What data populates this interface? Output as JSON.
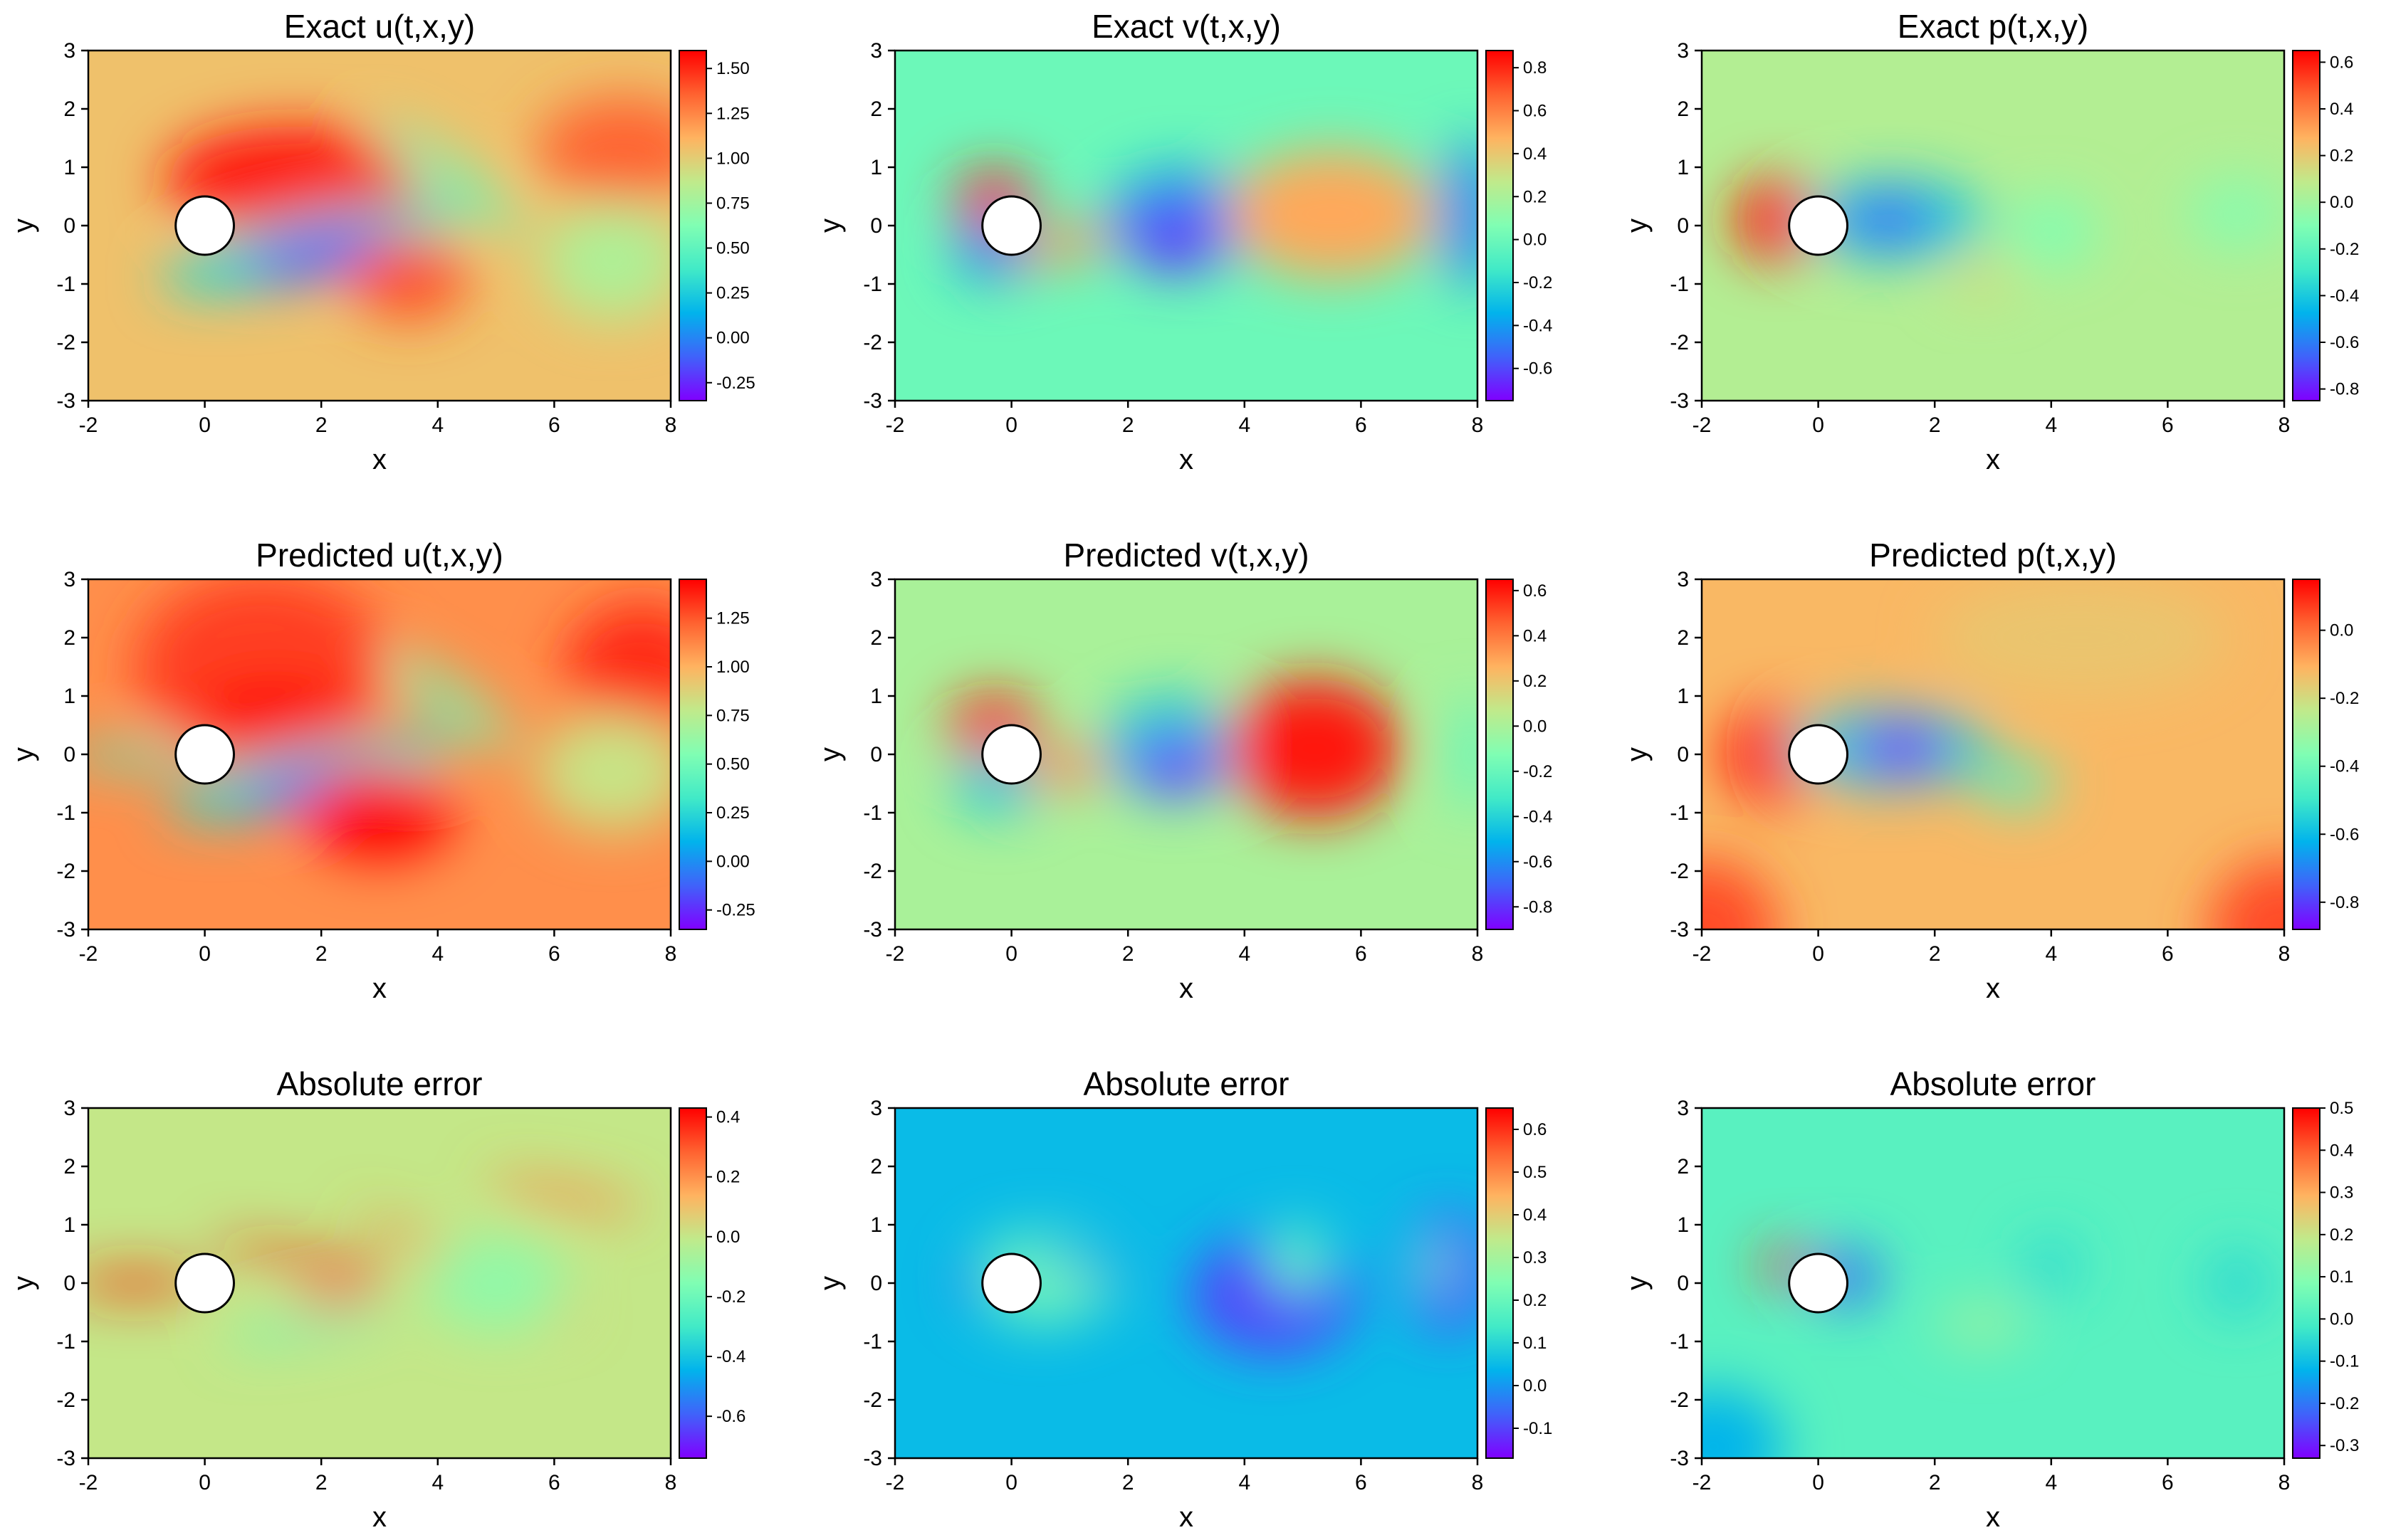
{
  "figure": {
    "colormap_name": "rainbow",
    "colormap": [
      "#8000ff",
      "#4062fa",
      "#01b3ec",
      "#41eac7",
      "#80feb3",
      "#c0ea8b",
      "#ffb360",
      "#ff6230",
      "#ff0000"
    ],
    "obstacle": {
      "center": [
        0,
        0
      ],
      "radius": 0.5,
      "fill": "#ffffff",
      "stroke": "#000000"
    }
  },
  "chart_data": [
    {
      "type": "heatmap",
      "id": "exact-u",
      "title": "Exact u(t,x,y)",
      "xlabel": "x",
      "ylabel": "y",
      "xlim": [
        -2,
        8
      ],
      "ylim": [
        -3,
        3
      ],
      "xticks": [
        "-2",
        "0",
        "2",
        "4",
        "6",
        "8"
      ],
      "yticks": [
        "-3",
        "-2",
        "-1",
        "0",
        "1",
        "2",
        "3"
      ],
      "vmin": -0.35,
      "vmax": 1.6,
      "background": 1.05,
      "colorbar_ticks": [
        {
          "value": 1.5,
          "label": "1.50"
        },
        {
          "value": 1.25,
          "label": "1.25"
        },
        {
          "value": 1.0,
          "label": "1.00"
        },
        {
          "value": 0.75,
          "label": "0.75"
        },
        {
          "value": 0.5,
          "label": "0.50"
        },
        {
          "value": 0.25,
          "label": "0.25"
        },
        {
          "value": 0.0,
          "label": "0.00"
        },
        {
          "value": -0.25,
          "label": "-0.25"
        }
      ],
      "features": [
        {
          "x": 1.5,
          "y": 0.8,
          "rx": 2.2,
          "ry": 0.9,
          "rot": 0,
          "v": 1.55
        },
        {
          "x": 1.8,
          "y": -0.4,
          "rx": 2.6,
          "ry": 0.55,
          "rot": 12,
          "v": 0.3
        },
        {
          "x": 2.0,
          "y": -0.5,
          "rx": 1.4,
          "ry": 0.35,
          "rot": 12,
          "v": -0.25
        },
        {
          "x": 4.2,
          "y": 0.8,
          "rx": 1.6,
          "ry": 0.3,
          "rot": -35,
          "v": 0.55
        },
        {
          "x": 3.5,
          "y": -0.9,
          "rx": 1.0,
          "ry": 0.7,
          "rot": 0,
          "v": 1.4
        },
        {
          "x": 7.2,
          "y": 1.3,
          "rx": 1.5,
          "ry": 0.9,
          "rot": 0,
          "v": 1.35
        },
        {
          "x": 7.0,
          "y": -0.6,
          "rx": 1.2,
          "ry": 1.0,
          "rot": 0,
          "v": 0.8
        }
      ]
    },
    {
      "type": "heatmap",
      "id": "exact-v",
      "title": "Exact v(t,x,y)",
      "xlabel": "x",
      "ylabel": "y",
      "xlim": [
        -2,
        8
      ],
      "ylim": [
        -3,
        3
      ],
      "xticks": [
        "-2",
        "0",
        "2",
        "4",
        "6",
        "8"
      ],
      "yticks": [
        "-3",
        "-2",
        "-1",
        "0",
        "1",
        "2",
        "3"
      ],
      "vmin": -0.75,
      "vmax": 0.88,
      "background": 0.0,
      "colorbar_ticks": [
        {
          "value": 0.8,
          "label": "0.8"
        },
        {
          "value": 0.6,
          "label": "0.6"
        },
        {
          "value": 0.4,
          "label": "0.4"
        },
        {
          "value": 0.2,
          "label": "0.2"
        },
        {
          "value": 0.0,
          "label": "0.0"
        },
        {
          "value": -0.2,
          "label": "-0.2"
        },
        {
          "value": -0.4,
          "label": "-0.4"
        },
        {
          "value": -0.6,
          "label": "-0.6"
        }
      ],
      "features": [
        {
          "x": -0.3,
          "y": 0.4,
          "rx": 0.7,
          "ry": 0.55,
          "rot": 0,
          "v": 0.8
        },
        {
          "x": -0.3,
          "y": -0.4,
          "rx": 0.7,
          "ry": 0.55,
          "rot": 0,
          "v": -0.45
        },
        {
          "x": 1.0,
          "y": -0.3,
          "rx": 1.0,
          "ry": 0.3,
          "rot": 15,
          "v": 0.55
        },
        {
          "x": 2.9,
          "y": 0.1,
          "rx": 1.3,
          "ry": 0.9,
          "rot": 0,
          "v": -0.4
        },
        {
          "x": 2.8,
          "y": -0.2,
          "rx": 0.8,
          "ry": 0.6,
          "rot": 0,
          "v": -0.65
        },
        {
          "x": 5.5,
          "y": 0.2,
          "rx": 1.8,
          "ry": 1.1,
          "rot": 0,
          "v": 0.5
        },
        {
          "x": 7.9,
          "y": 0.2,
          "rx": 0.5,
          "ry": 1.3,
          "rot": 0,
          "v": -0.45
        }
      ]
    },
    {
      "type": "heatmap",
      "id": "exact-p",
      "title": "Exact p(t,x,y)",
      "xlabel": "x",
      "ylabel": "y",
      "xlim": [
        -2,
        8
      ],
      "ylim": [
        -3,
        3
      ],
      "xticks": [
        "-2",
        "0",
        "2",
        "4",
        "6",
        "8"
      ],
      "yticks": [
        "-3",
        "-2",
        "-1",
        "0",
        "1",
        "2",
        "3"
      ],
      "vmin": -0.85,
      "vmax": 0.65,
      "background": 0.05,
      "colorbar_ticks": [
        {
          "value": 0.6,
          "label": "0.6"
        },
        {
          "value": 0.4,
          "label": "0.4"
        },
        {
          "value": 0.2,
          "label": "0.2"
        },
        {
          "value": 0.0,
          "label": "0.0"
        },
        {
          "value": -0.2,
          "label": "-0.2"
        },
        {
          "value": -0.4,
          "label": "-0.4"
        },
        {
          "value": -0.6,
          "label": "-0.6"
        },
        {
          "value": -0.8,
          "label": "-0.8"
        }
      ],
      "features": [
        {
          "x": -0.7,
          "y": 0.1,
          "rx": 0.75,
          "ry": 0.7,
          "rot": 0,
          "v": 0.6
        },
        {
          "x": 1.3,
          "y": 0.1,
          "rx": 1.6,
          "ry": 0.7,
          "rot": 0,
          "v": -0.4
        },
        {
          "x": 1.2,
          "y": 0.1,
          "rx": 0.8,
          "ry": 0.45,
          "rot": 0,
          "v": -0.65
        },
        {
          "x": 4.0,
          "y": -0.1,
          "rx": 0.8,
          "ry": 0.6,
          "rot": 0,
          "v": -0.1
        },
        {
          "x": 7.2,
          "y": 0.2,
          "rx": 0.9,
          "ry": 0.6,
          "rot": 0,
          "v": -0.08
        },
        {
          "x": 2.8,
          "y": -0.9,
          "rx": 0.6,
          "ry": 0.3,
          "rot": 0,
          "v": 0.15
        }
      ]
    },
    {
      "type": "heatmap",
      "id": "pred-u",
      "title": "Predicted u(t,x,y)",
      "xlabel": "x",
      "ylabel": "y",
      "xlim": [
        -2,
        8
      ],
      "ylim": [
        -3,
        3
      ],
      "xticks": [
        "-2",
        "0",
        "2",
        "4",
        "6",
        "8"
      ],
      "yticks": [
        "-3",
        "-2",
        "-1",
        "0",
        "1",
        "2",
        "3"
      ],
      "vmin": -0.35,
      "vmax": 1.45,
      "background": 1.1,
      "colorbar_ticks": [
        {
          "value": 1.25,
          "label": "1.25"
        },
        {
          "value": 1.0,
          "label": "1.00"
        },
        {
          "value": 0.75,
          "label": "0.75"
        },
        {
          "value": 0.5,
          "label": "0.50"
        },
        {
          "value": 0.25,
          "label": "0.25"
        },
        {
          "value": 0.0,
          "label": "0.00"
        },
        {
          "value": -0.25,
          "label": "-0.25"
        }
      ],
      "features": [
        {
          "x": 1.0,
          "y": 1.5,
          "rx": 2.2,
          "ry": 1.6,
          "rot": 0,
          "v": 1.3
        },
        {
          "x": 1.2,
          "y": 0.7,
          "rx": 1.4,
          "ry": 0.6,
          "rot": 0,
          "v": 1.45
        },
        {
          "x": -1.2,
          "y": 0.0,
          "rx": 1.2,
          "ry": 0.2,
          "rot": 0,
          "v": 0.35
        },
        {
          "x": 1.8,
          "y": -0.4,
          "rx": 2.5,
          "ry": 0.5,
          "rot": 12,
          "v": 0.25
        },
        {
          "x": 2.0,
          "y": -0.55,
          "rx": 1.4,
          "ry": 0.3,
          "rot": 12,
          "v": -0.25
        },
        {
          "x": 3.0,
          "y": -1.0,
          "rx": 1.3,
          "ry": 0.8,
          "rot": 0,
          "v": 1.45
        },
        {
          "x": 4.2,
          "y": 0.9,
          "rx": 1.4,
          "ry": 0.3,
          "rot": -35,
          "v": 0.5
        },
        {
          "x": 7.5,
          "y": 1.5,
          "rx": 1.3,
          "ry": 1.1,
          "rot": 0,
          "v": 1.35
        },
        {
          "x": 7.0,
          "y": -0.3,
          "rx": 1.3,
          "ry": 1.0,
          "rot": 0,
          "v": 0.8
        }
      ]
    },
    {
      "type": "heatmap",
      "id": "pred-v",
      "title": "Predicted v(t,x,y)",
      "xlabel": "x",
      "ylabel": "y",
      "xlim": [
        -2,
        8
      ],
      "ylim": [
        -3,
        3
      ],
      "xticks": [
        "-2",
        "0",
        "2",
        "4",
        "6",
        "8"
      ],
      "yticks": [
        "-3",
        "-2",
        "-1",
        "0",
        "1",
        "2",
        "3"
      ],
      "vmin": -0.9,
      "vmax": 0.65,
      "background": 0.0,
      "colorbar_ticks": [
        {
          "value": 0.6,
          "label": "0.6"
        },
        {
          "value": 0.4,
          "label": "0.4"
        },
        {
          "value": 0.2,
          "label": "0.2"
        },
        {
          "value": 0.0,
          "label": "0.0"
        },
        {
          "value": -0.2,
          "label": "-0.2"
        },
        {
          "value": -0.4,
          "label": "-0.4"
        },
        {
          "value": -0.6,
          "label": "-0.6"
        },
        {
          "value": -0.8,
          "label": "-0.8"
        }
      ],
      "features": [
        {
          "x": -0.3,
          "y": 0.45,
          "rx": 0.8,
          "ry": 0.55,
          "rot": 0,
          "v": 0.6
        },
        {
          "x": -0.2,
          "y": -0.45,
          "rx": 0.8,
          "ry": 0.55,
          "rot": 0,
          "v": -0.45
        },
        {
          "x": 1.1,
          "y": -0.2,
          "rx": 0.9,
          "ry": 0.35,
          "rot": 10,
          "v": 0.35
        },
        {
          "x": 2.8,
          "y": 0.1,
          "rx": 1.3,
          "ry": 0.9,
          "rot": 0,
          "v": -0.45
        },
        {
          "x": 2.8,
          "y": -0.2,
          "rx": 0.7,
          "ry": 0.5,
          "rot": 0,
          "v": -0.85
        },
        {
          "x": 5.2,
          "y": 0.1,
          "rx": 1.5,
          "ry": 1.2,
          "rot": 0,
          "v": 0.6
        },
        {
          "x": 7.9,
          "y": 0.0,
          "rx": 0.4,
          "ry": 1.0,
          "rot": 0,
          "v": -0.2
        }
      ]
    },
    {
      "type": "heatmap",
      "id": "pred-p",
      "title": "Predicted p(t,x,y)",
      "xlabel": "x",
      "ylabel": "y",
      "xlim": [
        -2,
        8
      ],
      "ylim": [
        -3,
        3
      ],
      "xticks": [
        "-2",
        "0",
        "2",
        "4",
        "6",
        "8"
      ],
      "yticks": [
        "-3",
        "-2",
        "-1",
        "0",
        "1",
        "2",
        "3"
      ],
      "vmin": -0.88,
      "vmax": 0.15,
      "background": -0.12,
      "colorbar_ticks": [
        {
          "value": 0.0,
          "label": "0.0"
        },
        {
          "value": -0.2,
          "label": "-0.2"
        },
        {
          "value": -0.4,
          "label": "-0.4"
        },
        {
          "value": -0.6,
          "label": "-0.6"
        },
        {
          "value": -0.8,
          "label": "-0.8"
        }
      ],
      "features": [
        {
          "x": -0.7,
          "y": 0.0,
          "rx": 0.9,
          "ry": 0.8,
          "rot": 0,
          "v": 0.15
        },
        {
          "x": 1.2,
          "y": 0.1,
          "rx": 1.8,
          "ry": 0.7,
          "rot": 0,
          "v": -0.55
        },
        {
          "x": 1.4,
          "y": 0.1,
          "rx": 0.9,
          "ry": 0.45,
          "rot": 0,
          "v": -0.85
        },
        {
          "x": 3.4,
          "y": -0.5,
          "rx": 0.7,
          "ry": 0.4,
          "rot": 0,
          "v": -0.45
        },
        {
          "x": 4.5,
          "y": 2.0,
          "rx": 2.5,
          "ry": 1.0,
          "rot": 0,
          "v": -0.15
        },
        {
          "x": -2.0,
          "y": -3.0,
          "rx": 1.3,
          "ry": 1.2,
          "rot": 0,
          "v": 0.05
        },
        {
          "x": 8.0,
          "y": -3.0,
          "rx": 1.3,
          "ry": 1.2,
          "rot": 0,
          "v": 0.05
        }
      ]
    },
    {
      "type": "heatmap",
      "id": "err-u",
      "title": "Absolute error",
      "xlabel": "x",
      "ylabel": "y",
      "xlim": [
        -2,
        8
      ],
      "ylim": [
        -3,
        3
      ],
      "xticks": [
        "-2",
        "0",
        "2",
        "4",
        "6",
        "8"
      ],
      "yticks": [
        "-3",
        "-2",
        "-1",
        "0",
        "1",
        "2",
        "3"
      ],
      "vmin": -0.74,
      "vmax": 0.43,
      "background": 0.0,
      "colorbar_ticks": [
        {
          "value": 0.4,
          "label": "0.4"
        },
        {
          "value": 0.2,
          "label": "0.2"
        },
        {
          "value": 0.0,
          "label": "0.0"
        },
        {
          "value": -0.2,
          "label": "-0.2"
        },
        {
          "value": -0.4,
          "label": "-0.4"
        },
        {
          "value": -0.6,
          "label": "-0.6"
        }
      ],
      "features": [
        {
          "x": -1.2,
          "y": 0.0,
          "rx": 1.2,
          "ry": 0.2,
          "rot": 0,
          "v": 0.38
        },
        {
          "x": 1.6,
          "y": 0.4,
          "rx": 1.5,
          "ry": 0.15,
          "rot": -10,
          "v": 0.38
        },
        {
          "x": 2.3,
          "y": -0.2,
          "rx": 0.8,
          "ry": 0.2,
          "rot": 15,
          "v": 0.35
        },
        {
          "x": 1.8,
          "y": -0.7,
          "rx": 1.5,
          "ry": 0.2,
          "rot": 10,
          "v": -0.2
        },
        {
          "x": 4.5,
          "y": 0.3,
          "rx": 2.2,
          "ry": 0.15,
          "rot": -25,
          "v": 0.25
        },
        {
          "x": 5.0,
          "y": 0.0,
          "rx": 1.2,
          "ry": 0.8,
          "rot": 0,
          "v": -0.12
        },
        {
          "x": 6.2,
          "y": 1.5,
          "rx": 1.4,
          "ry": 0.2,
          "rot": -10,
          "v": 0.22
        }
      ]
    },
    {
      "type": "heatmap",
      "id": "err-v",
      "title": "Absolute error",
      "xlabel": "x",
      "ylabel": "y",
      "xlim": [
        -2,
        8
      ],
      "ylim": [
        -3,
        3
      ],
      "xticks": [
        "-2",
        "0",
        "2",
        "4",
        "6",
        "8"
      ],
      "yticks": [
        "-3",
        "-2",
        "-1",
        "0",
        "1",
        "2",
        "3"
      ],
      "vmin": -0.17,
      "vmax": 0.65,
      "background": 0.05,
      "colorbar_ticks": [
        {
          "value": 0.6,
          "label": "0.6"
        },
        {
          "value": 0.5,
          "label": "0.5"
        },
        {
          "value": 0.4,
          "label": "0.4"
        },
        {
          "value": 0.3,
          "label": "0.3"
        },
        {
          "value": 0.2,
          "label": "0.2"
        },
        {
          "value": 0.1,
          "label": "0.1"
        },
        {
          "value": 0.0,
          "label": "0.0"
        },
        {
          "value": -0.1,
          "label": "-0.1"
        }
      ],
      "features": [
        {
          "x": 0.5,
          "y": 0.1,
          "rx": 1.2,
          "ry": 0.8,
          "rot": 0,
          "v": 0.2
        },
        {
          "x": -0.6,
          "y": 0.0,
          "rx": 0.3,
          "ry": 0.25,
          "rot": 0,
          "v": -0.12
        },
        {
          "x": 1.2,
          "y": 0.3,
          "rx": 0.9,
          "ry": 0.15,
          "rot": -15,
          "v": -0.05
        },
        {
          "x": 1.0,
          "y": -0.3,
          "rx": 0.9,
          "ry": 0.15,
          "rot": 10,
          "v": 0.25
        },
        {
          "x": 4.5,
          "y": -0.2,
          "rx": 1.4,
          "ry": 1.0,
          "rot": 0,
          "v": -0.1
        },
        {
          "x": 4.9,
          "y": 0.4,
          "rx": 0.5,
          "ry": 0.6,
          "rot": 0,
          "v": 0.2
        },
        {
          "x": 7.5,
          "y": 0.2,
          "rx": 0.7,
          "ry": 1.0,
          "rot": 0,
          "v": -0.1
        },
        {
          "x": 7.3,
          "y": 0.3,
          "rx": 0.25,
          "ry": 0.5,
          "rot": 0,
          "v": 0.22
        }
      ]
    },
    {
      "type": "heatmap",
      "id": "err-p",
      "title": "Absolute error",
      "xlabel": "x",
      "ylabel": "y",
      "xlim": [
        -2,
        8
      ],
      "ylim": [
        -3,
        3
      ],
      "xticks": [
        "-2",
        "0",
        "2",
        "4",
        "6",
        "8"
      ],
      "yticks": [
        "-3",
        "-2",
        "-1",
        "0",
        "1",
        "2",
        "3"
      ],
      "vmin": -0.33,
      "vmax": 0.5,
      "background": 0.02,
      "colorbar_ticks": [
        {
          "value": 0.5,
          "label": "0.5"
        },
        {
          "value": 0.4,
          "label": "0.4"
        },
        {
          "value": 0.3,
          "label": "0.3"
        },
        {
          "value": 0.2,
          "label": "0.2"
        },
        {
          "value": 0.1,
          "label": "0.1"
        },
        {
          "value": 0.0,
          "label": "0.0"
        },
        {
          "value": -0.1,
          "label": "-0.1"
        },
        {
          "value": -0.2,
          "label": "-0.2"
        },
        {
          "value": -0.3,
          "label": "-0.3"
        }
      ],
      "features": [
        {
          "x": -0.6,
          "y": 0.3,
          "rx": 0.4,
          "ry": 0.3,
          "rot": 0,
          "v": 0.45
        },
        {
          "x": 0.5,
          "y": 0.1,
          "rx": 0.6,
          "ry": 0.5,
          "rot": 0,
          "v": -0.2
        },
        {
          "x": 2.8,
          "y": -0.7,
          "rx": 0.8,
          "ry": 0.3,
          "rot": 0,
          "v": 0.15
        },
        {
          "x": 4.0,
          "y": 0.3,
          "rx": 0.5,
          "ry": 0.5,
          "rot": 0,
          "v": -0.05
        },
        {
          "x": 7.2,
          "y": 0.0,
          "rx": 0.6,
          "ry": 0.6,
          "rot": 0,
          "v": -0.05
        },
        {
          "x": -1.8,
          "y": -2.8,
          "rx": 1.2,
          "ry": 1.0,
          "rot": 0,
          "v": -0.12
        }
      ]
    }
  ]
}
